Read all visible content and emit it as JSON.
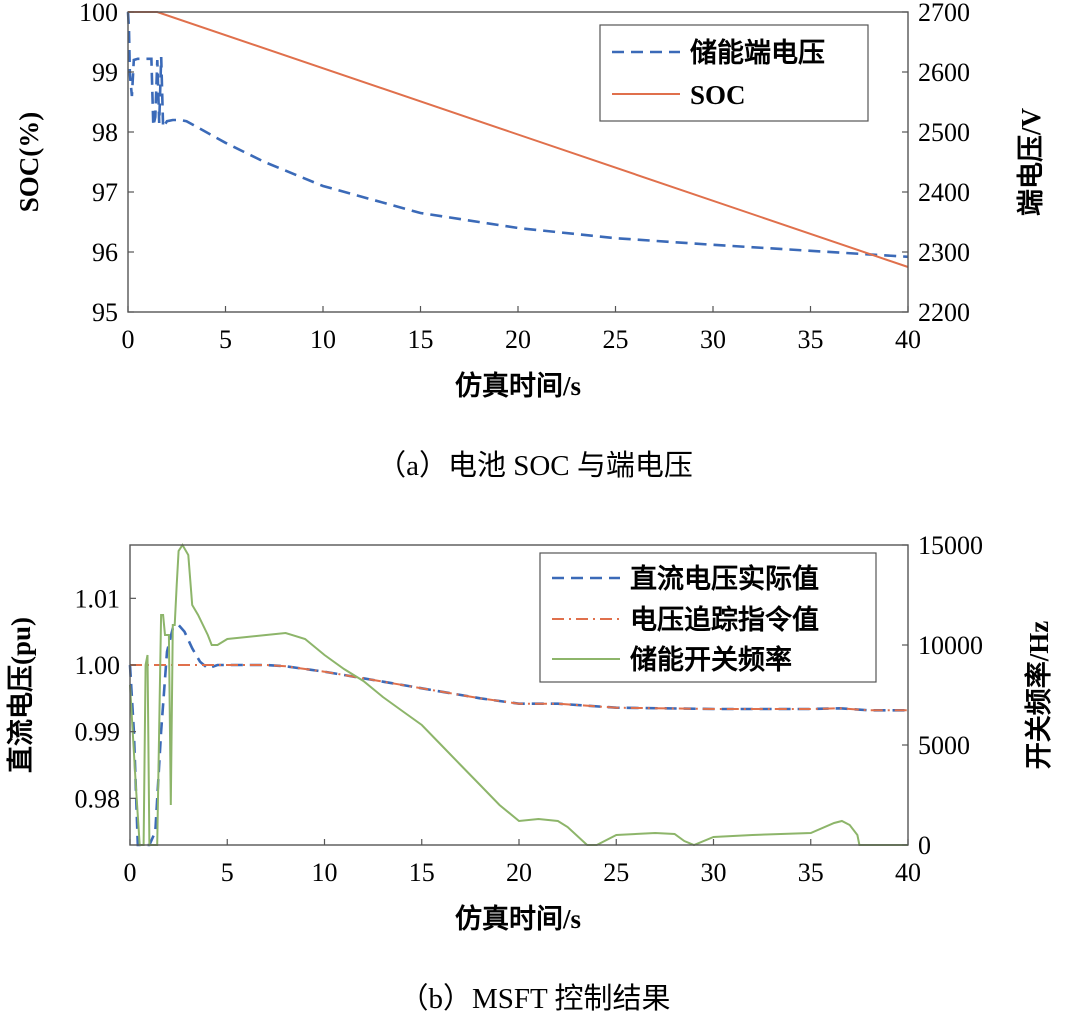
{
  "chart_data": [
    {
      "type": "line",
      "caption": "（a）电池 SOC 与端电压",
      "xlabel": "仿真时间/s",
      "ylabel": "SOC(%)",
      "y2label": "端电压/V",
      "xlim": [
        0,
        40
      ],
      "ylim": [
        95,
        100
      ],
      "y2lim": [
        2200,
        2700
      ],
      "xticks": [
        "0",
        "5",
        "10",
        "15",
        "20",
        "25",
        "30",
        "35",
        "40"
      ],
      "yticks": [
        "95",
        "96",
        "97",
        "98",
        "99",
        "100"
      ],
      "y2ticks": [
        "2200",
        "2300",
        "2400",
        "2500",
        "2600",
        "2700"
      ],
      "grid": false,
      "legend_position": "top-right",
      "series": [
        {
          "name": "储能端电压",
          "axis": "right",
          "style": "dashed",
          "color": "#3b6ab8",
          "x": [
            0,
            0.05,
            0.1,
            0.2,
            0.3,
            0.5,
            0.8,
            1.0,
            1.2,
            1.3,
            1.4,
            1.5,
            1.6,
            1.7,
            1.8,
            2.0,
            2.3,
            2.7,
            3.0,
            4,
            5,
            7,
            10,
            15,
            20,
            25,
            30,
            35,
            40
          ],
          "y": [
            2700,
            2670,
            2595,
            2560,
            2620,
            2622,
            2622,
            2622,
            2622,
            2510,
            2525,
            2620,
            2515,
            2625,
            2508,
            2518,
            2520,
            2520,
            2518,
            2500,
            2482,
            2450,
            2410,
            2365,
            2340,
            2323,
            2312,
            2302,
            2292
          ]
        },
        {
          "name": "SOC",
          "axis": "left",
          "style": "solid",
          "color": "#e0704c",
          "x": [
            0,
            1.5,
            40
          ],
          "y": [
            100,
            100,
            95.75
          ]
        }
      ]
    },
    {
      "type": "line",
      "caption": "（b）MSFT 控制结果",
      "xlabel": "仿真时间/s",
      "ylabel": "直流电压(pu)",
      "y2label": "开关频率/Hz",
      "xlim": [
        0,
        40
      ],
      "ylim": [
        0.973,
        1.018
      ],
      "y2lim": [
        0,
        15000
      ],
      "xticks": [
        "0",
        "5",
        "10",
        "15",
        "20",
        "25",
        "30",
        "35",
        "40"
      ],
      "yticks": [
        "0.98",
        "0.99",
        "1.00",
        "1.01"
      ],
      "y2ticks": [
        "0",
        "5000",
        "10000",
        "15000"
      ],
      "grid": false,
      "legend_position": "top-right",
      "series": [
        {
          "name": "直流电压实际值",
          "axis": "left",
          "style": "dashed",
          "color": "#3b6ab8",
          "x": [
            0,
            0.2,
            0.4,
            0.6,
            1.0,
            1.3,
            1.6,
            1.9,
            2.2,
            2.5,
            2.8,
            3.2,
            3.6,
            4.0,
            4.5,
            5,
            6,
            7,
            8,
            10,
            12,
            15,
            18,
            20,
            22,
            25,
            30,
            35,
            36.5,
            38,
            40
          ],
          "y": [
            1.0,
            0.99,
            0.973,
            0.973,
            0.973,
            0.975,
            0.99,
            1.002,
            1.0055,
            1.006,
            1.005,
            1.0025,
            1.0005,
            0.9995,
            1.0,
            1.0,
            1.0,
            1.0,
            0.9998,
            0.999,
            0.998,
            0.9965,
            0.995,
            0.9942,
            0.9942,
            0.9936,
            0.9934,
            0.9934,
            0.9935,
            0.9932,
            0.9932
          ]
        },
        {
          "name": "电压追踪指令值",
          "axis": "left",
          "style": "dashdot",
          "color": "#e0704c",
          "x": [
            0,
            5,
            7,
            8,
            10,
            12,
            15,
            18,
            20,
            22,
            25,
            30,
            35,
            36.5,
            38,
            40
          ],
          "y": [
            1.0,
            1.0,
            1.0,
            0.9998,
            0.999,
            0.998,
            0.9965,
            0.995,
            0.9942,
            0.9942,
            0.9936,
            0.9934,
            0.9934,
            0.9935,
            0.9932,
            0.9932
          ]
        },
        {
          "name": "储能开关频率",
          "axis": "right",
          "style": "solid",
          "color": "#8db56a",
          "x": [
            0,
            0.3,
            0.5,
            0.7,
            0.8,
            0.9,
            1.0,
            1.3,
            1.4,
            1.6,
            1.7,
            1.8,
            2.0,
            2.1,
            2.2,
            2.3,
            2.4,
            2.5,
            2.7,
            3.0,
            3.2,
            3.5,
            4.0,
            4.2,
            4.5,
            5.0,
            6,
            7,
            8,
            9,
            10,
            11,
            12,
            13,
            14,
            15,
            16,
            17,
            18,
            19,
            20,
            21,
            22,
            22.5,
            23.5,
            24,
            25,
            27,
            28,
            28.5,
            29,
            30,
            32,
            35,
            36.2,
            36.6,
            37,
            37.4,
            37.5,
            38,
            40
          ],
          "y": [
            8000,
            3000,
            0,
            0,
            9000,
            9500,
            0,
            0,
            0,
            11500,
            11500,
            10500,
            10500,
            2000,
            11000,
            11000,
            13000,
            14700,
            15000,
            14500,
            12000,
            11500,
            10500,
            10000,
            10000,
            10300,
            10400,
            10500,
            10600,
            10300,
            9500,
            8800,
            8200,
            7400,
            6700,
            6000,
            5000,
            4000,
            3000,
            2000,
            1200,
            1300,
            1200,
            900,
            0,
            0,
            500,
            600,
            550,
            200,
            0,
            400,
            500,
            600,
            1100,
            1200,
            1000,
            500,
            0,
            0,
            0
          ]
        }
      ]
    }
  ]
}
